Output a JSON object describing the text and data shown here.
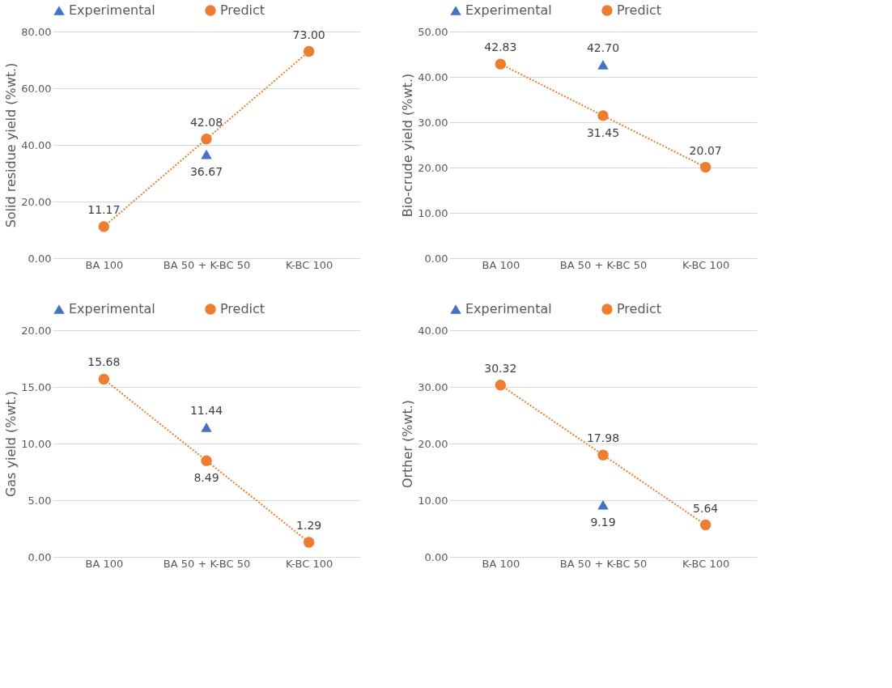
{
  "chart_data": [
    {
      "type": "line",
      "ylabel": "Solid residue yield (%wt.)",
      "categories": [
        "BA 100",
        "BA 50 + K-BC 50",
        "K-BC 100"
      ],
      "ylim": [
        0,
        80
      ],
      "yticks": [
        {
          "value": 0,
          "label": "0.00"
        },
        {
          "value": 20,
          "label": "20.00"
        },
        {
          "value": 40,
          "label": "40.00"
        },
        {
          "value": 60,
          "label": "60.00"
        },
        {
          "value": 80,
          "label": "80.00"
        }
      ],
      "grid": "y",
      "legend": "top",
      "line_style": "dotted",
      "series": [
        {
          "name": "Experimental",
          "type": "scatter",
          "marker": "triangle",
          "color": "#4472c4",
          "values": [
            null,
            36.67,
            null
          ],
          "value_labels": [
            null,
            "36.67",
            null
          ]
        },
        {
          "name": "Predict",
          "type": "line",
          "marker": "circle",
          "color": "#ed7d31",
          "values": [
            11.17,
            42.08,
            73.0
          ],
          "value_labels": [
            "11.17",
            "42.08",
            "73.00"
          ]
        }
      ]
    },
    {
      "type": "line",
      "ylabel": "Bio-crude  yield (%wt.)",
      "categories": [
        "BA 100",
        "BA 50 + K-BC 50",
        "K-BC 100"
      ],
      "ylim": [
        0,
        50
      ],
      "yticks": [
        {
          "value": 0,
          "label": "0.00"
        },
        {
          "value": 10,
          "label": "10.00"
        },
        {
          "value": 20,
          "label": "20.00"
        },
        {
          "value": 30,
          "label": "30.00"
        },
        {
          "value": 40,
          "label": "40.00"
        },
        {
          "value": 50,
          "label": "50.00"
        }
      ],
      "grid": "y",
      "legend": "top",
      "line_style": "dotted",
      "series": [
        {
          "name": "Experimental",
          "type": "scatter",
          "marker": "triangle",
          "color": "#4472c4",
          "values": [
            null,
            42.7,
            null
          ],
          "value_labels": [
            null,
            "42.70",
            null
          ]
        },
        {
          "name": "Predict",
          "type": "line",
          "marker": "circle",
          "color": "#ed7d31",
          "values": [
            42.83,
            31.45,
            20.07
          ],
          "value_labels": [
            "42.83",
            "31.45",
            "20.07"
          ]
        }
      ]
    },
    {
      "type": "line",
      "ylabel": "Gas yield (%wt.)",
      "categories": [
        "BA 100",
        "BA 50 + K-BC 50",
        "K-BC 100"
      ],
      "ylim": [
        0,
        20
      ],
      "yticks": [
        {
          "value": 0,
          "label": "0.00"
        },
        {
          "value": 5,
          "label": "5.00"
        },
        {
          "value": 10,
          "label": "10.00"
        },
        {
          "value": 15,
          "label": "15.00"
        },
        {
          "value": 20,
          "label": "20.00"
        }
      ],
      "grid": "y",
      "legend": "top",
      "line_style": "dotted",
      "series": [
        {
          "name": "Experimental",
          "type": "scatter",
          "marker": "triangle",
          "color": "#4472c4",
          "values": [
            null,
            11.44,
            null
          ],
          "value_labels": [
            null,
            "11.44",
            null
          ]
        },
        {
          "name": "Predict",
          "type": "line",
          "marker": "circle",
          "color": "#ed7d31",
          "values": [
            15.68,
            8.49,
            1.29
          ],
          "value_labels": [
            "15.68",
            "8.49",
            "1.29"
          ]
        }
      ]
    },
    {
      "type": "line",
      "ylabel": "Orther (%wt.)",
      "categories": [
        "BA 100",
        "BA 50 + K-BC 50",
        "K-BC 100"
      ],
      "ylim": [
        0,
        40
      ],
      "yticks": [
        {
          "value": 0,
          "label": "0.00"
        },
        {
          "value": 10,
          "label": "10.00"
        },
        {
          "value": 20,
          "label": "20.00"
        },
        {
          "value": 30,
          "label": "30.00"
        },
        {
          "value": 40,
          "label": "40.00"
        }
      ],
      "grid": "y",
      "legend": "top",
      "line_style": "dotted",
      "series": [
        {
          "name": "Experimental",
          "type": "scatter",
          "marker": "triangle",
          "color": "#4472c4",
          "values": [
            null,
            9.19,
            null
          ],
          "value_labels": [
            null,
            "9.19",
            null
          ]
        },
        {
          "name": "Predict",
          "type": "line",
          "marker": "circle",
          "color": "#ed7d31",
          "values": [
            30.32,
            17.98,
            5.64
          ],
          "value_labels": [
            "30.32",
            "17.98",
            "5.64"
          ]
        }
      ]
    }
  ]
}
